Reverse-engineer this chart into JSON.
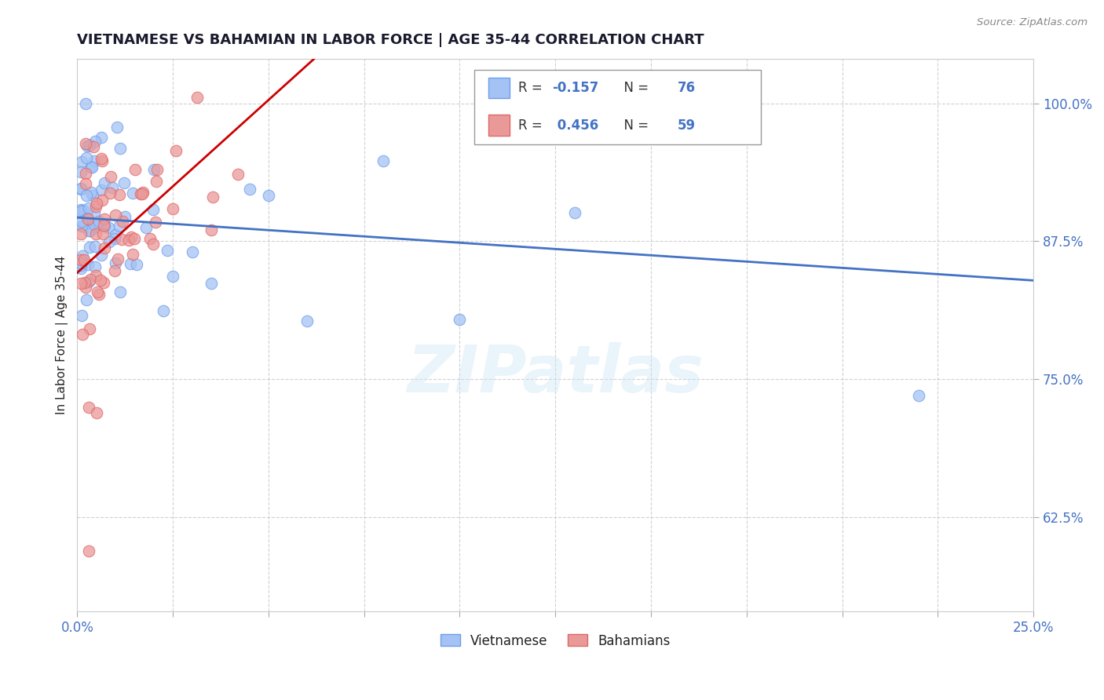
{
  "title": "VIETNAMESE VS BAHAMIAN IN LABOR FORCE | AGE 35-44 CORRELATION CHART",
  "source": "Source: ZipAtlas.com",
  "ylabel": "In Labor Force | Age 35-44",
  "xlim": [
    0.0,
    0.25
  ],
  "ylim": [
    0.54,
    1.04
  ],
  "xtick_positions": [
    0.0,
    0.025,
    0.05,
    0.075,
    0.1,
    0.125,
    0.15,
    0.175,
    0.2,
    0.225,
    0.25
  ],
  "ytick_positions": [
    0.625,
    0.75,
    0.875,
    1.0
  ],
  "vietnamese_color_fill": "#a4c2f4",
  "vietnamese_color_edge": "#6d9eeb",
  "bahamian_color_fill": "#ea9999",
  "bahamian_color_edge": "#e06666",
  "trendline_vietnamese_color": "#4472c4",
  "trendline_bahamian_color": "#cc0000",
  "r_vietnamese": -0.157,
  "n_vietnamese": 76,
  "r_bahamian": 0.456,
  "n_bahamian": 59,
  "watermark": "ZIPatlas",
  "grid_color": "#cccccc",
  "background_color": "#ffffff",
  "text_color_blue": "#4472c4",
  "text_color_dark": "#222222",
  "source_color": "#888888",
  "legend_box_color": "#eeeeee",
  "viet_legend_fill": "#a4c2f4",
  "viet_legend_edge": "#6d9eeb",
  "bah_legend_fill": "#ea9999",
  "bah_legend_edge": "#e06666"
}
